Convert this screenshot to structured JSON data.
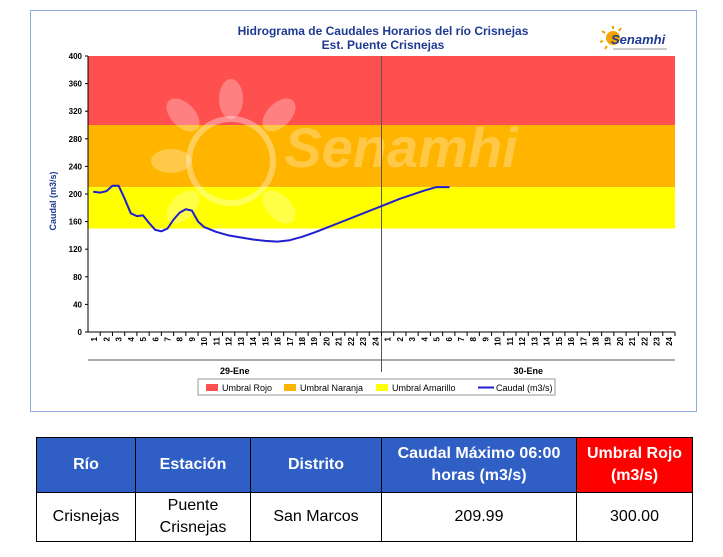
{
  "chart_data": {
    "type": "line",
    "title": "Hidrograma de Caudales Horarios del río Crisnejas",
    "subtitle": "Est. Puente Crisnejas",
    "ylabel": "Caudal  (m3/s)",
    "ylim": [
      0,
      400
    ],
    "yticks": [
      0,
      40,
      80,
      120,
      160,
      200,
      240,
      280,
      320,
      360,
      400
    ],
    "day_labels": [
      "29-Ene",
      "30-Ene"
    ],
    "hour_ticks": [
      "1",
      "2",
      "3",
      "4",
      "5",
      "6",
      "7",
      "8",
      "9",
      "10",
      "11",
      "12",
      "13",
      "14",
      "15",
      "16",
      "17",
      "18",
      "19",
      "20",
      "21",
      "22",
      "23",
      "24"
    ],
    "thresholds": [
      {
        "name": "Umbral Rojo",
        "from": 300,
        "to": 400,
        "color": "#ff5050"
      },
      {
        "name": "Umbral Naranja",
        "from": 210,
        "to": 300,
        "color": "#ffb400"
      },
      {
        "name": "Umbral Amarillo",
        "from": 150,
        "to": 210,
        "color": "#ffff00"
      }
    ],
    "series": [
      {
        "name": "Caudal (m3/s)",
        "color": "#1f1fcf",
        "x": [
          1,
          1.5,
          2,
          2.5,
          3,
          3.5,
          4,
          4.5,
          5,
          5.5,
          6,
          6.5,
          7,
          7.5,
          8,
          8.5,
          9,
          9.5,
          10,
          11,
          12,
          13,
          14,
          15,
          16,
          17,
          18,
          19,
          20,
          21,
          22,
          23,
          24,
          25,
          26,
          27,
          28,
          29,
          30
        ],
        "y": [
          203,
          202,
          204,
          212,
          212,
          193,
          172,
          168,
          169,
          158,
          148,
          146,
          150,
          163,
          173,
          178,
          176,
          160,
          152,
          145,
          140,
          137,
          134,
          132,
          131,
          133,
          138,
          144,
          151,
          158,
          165,
          172,
          179,
          186,
          193,
          199,
          205,
          210,
          210
        ]
      }
    ],
    "legend_position": "bottom",
    "grid": false
  },
  "watermark": "Senamhi",
  "logo": {
    "name": "Senamhi"
  },
  "table": {
    "headers": [
      "Río",
      "Estación",
      "Distrito",
      "Caudal Máximo 06:00 horas (m3/s)",
      "Umbral Rojo (m3/s)"
    ],
    "row": [
      "Crisnejas",
      "Puente Crisnejas",
      "San Marcos",
      "209.99",
      "300.00"
    ]
  }
}
